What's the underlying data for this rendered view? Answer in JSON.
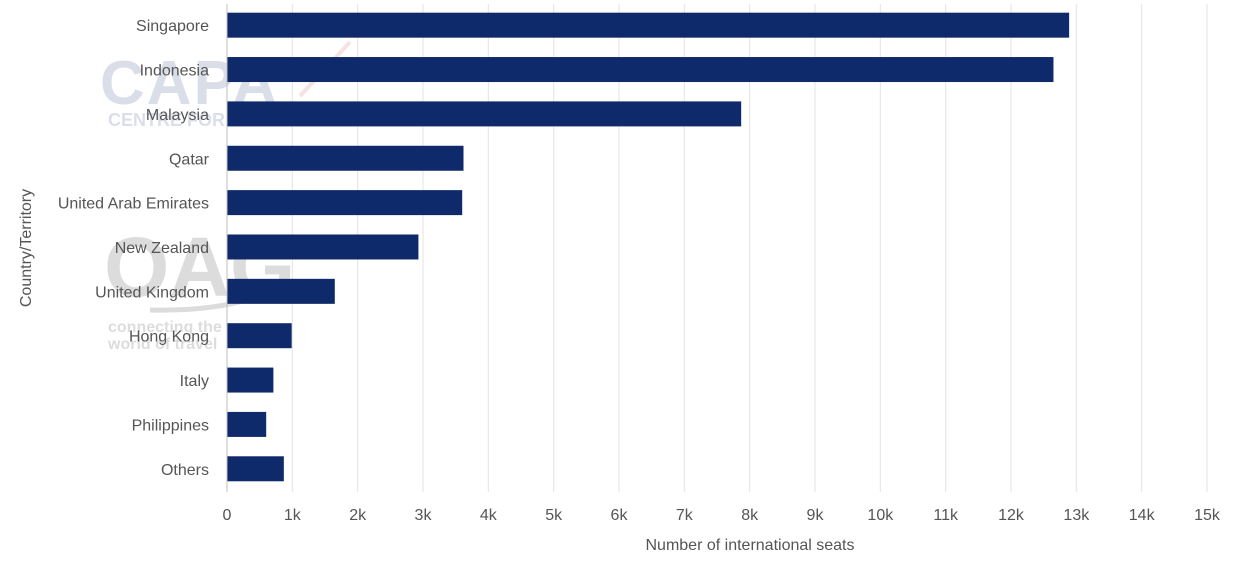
{
  "chart_data": {
    "type": "bar",
    "orientation": "horizontal",
    "categories": [
      "Singapore",
      "Indonesia",
      "Malaysia",
      "Qatar",
      "United Arab Emirates",
      "New Zealand",
      "United Kingdom",
      "Hong Kong",
      "Italy",
      "Philippines",
      "Others"
    ],
    "values": [
      12890,
      12650,
      7870,
      3620,
      3600,
      2930,
      1650,
      990,
      710,
      600,
      870
    ],
    "xlabel": "Number of international seats",
    "ylabel": "Country/Territory",
    "xlim": [
      0,
      15000
    ],
    "xticks": [
      0,
      1000,
      2000,
      3000,
      4000,
      5000,
      6000,
      7000,
      8000,
      9000,
      10000,
      11000,
      12000,
      13000,
      14000,
      15000
    ],
    "xtick_labels": [
      "0",
      "1k",
      "2k",
      "3k",
      "4k",
      "5k",
      "6k",
      "7k",
      "8k",
      "9k",
      "10k",
      "11k",
      "12k",
      "13k",
      "14k",
      "15k"
    ],
    "grid": "vertical",
    "bar_color": "#0f2a6b"
  },
  "watermarks": {
    "capa_logo": "CAPA",
    "capa_sub": "CENTRE FOR AVIATION",
    "oag_logo": "OAG",
    "oag_tagline_1": "connecting the",
    "oag_tagline_2": "world of travel"
  }
}
